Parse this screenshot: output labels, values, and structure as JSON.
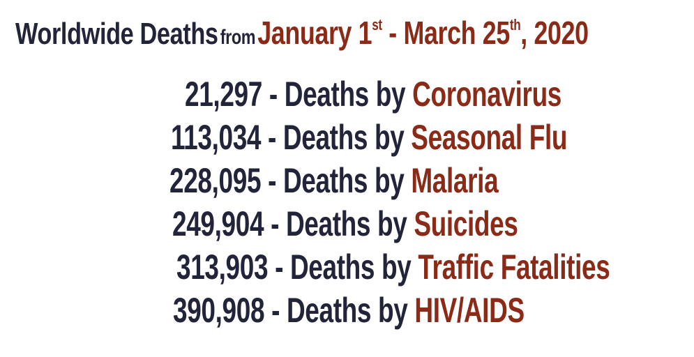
{
  "title": {
    "part1": "Worldwide Deaths",
    "part2": "from",
    "part3": "January 1",
    "sup1": "st",
    "part4": " - March 25",
    "sup2": "th",
    "part5": ", 2020"
  },
  "rows": [
    {
      "number": "21,297",
      "separator": " - ",
      "label": "Deaths by ",
      "cause": "Coronavirus"
    },
    {
      "number": "113,034",
      "separator": " - ",
      "label": "Deaths by ",
      "cause": "Seasonal Flu"
    },
    {
      "number": "228,095",
      "separator": " - ",
      "label": "Deaths by ",
      "cause": "Malaria"
    },
    {
      "number": "249,904",
      "separator": " - ",
      "label": "Deaths by ",
      "cause": "Suicides"
    },
    {
      "number": "313,903",
      "separator": " - ",
      "label": "Deaths by ",
      "cause": "Traffic Fatalities"
    },
    {
      "number": "390,908",
      "separator": " - ",
      "label": "Deaths by ",
      "cause": "HIV/AIDS"
    }
  ],
  "colors": {
    "text_dark": "#22243a",
    "text_accent": "#8a2a17",
    "background": "#ffffff"
  }
}
